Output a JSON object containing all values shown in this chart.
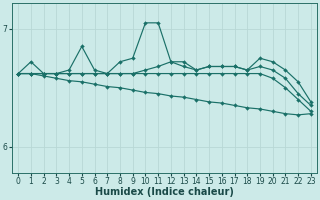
{
  "bg_color": "#cceae8",
  "grid_color": "#b8d8d5",
  "line_color": "#1a7068",
  "xlabel": "Humidex (Indice chaleur)",
  "xlabel_fontsize": 7,
  "yticks": [
    6,
    7
  ],
  "ylim": [
    5.78,
    7.22
  ],
  "xlim": [
    -0.5,
    23.5
  ],
  "xticks": [
    0,
    1,
    2,
    3,
    4,
    5,
    6,
    7,
    8,
    9,
    10,
    11,
    12,
    13,
    14,
    15,
    16,
    17,
    18,
    19,
    20,
    21,
    22,
    23
  ],
  "lines": [
    {
      "x": [
        0,
        1,
        2,
        3,
        4,
        5,
        6,
        7,
        8,
        9,
        10,
        11,
        12,
        13,
        14,
        15,
        16,
        17,
        18,
        19,
        20,
        21,
        22,
        23
      ],
      "y": [
        6.62,
        6.72,
        6.62,
        6.62,
        6.65,
        6.85,
        6.65,
        6.62,
        6.72,
        6.75,
        7.05,
        7.05,
        6.72,
        6.72,
        6.65,
        6.68,
        6.68,
        6.68,
        6.65,
        6.75,
        6.72,
        6.65,
        6.55,
        6.38
      ]
    },
    {
      "x": [
        0,
        1,
        2,
        3,
        4,
        5,
        6,
        7,
        8,
        9,
        10,
        11,
        12,
        13,
        14,
        15,
        16,
        17,
        18,
        19,
        20,
        21,
        22,
        23
      ],
      "y": [
        6.62,
        6.62,
        6.62,
        6.62,
        6.62,
        6.62,
        6.62,
        6.62,
        6.62,
        6.62,
        6.65,
        6.68,
        6.72,
        6.68,
        6.65,
        6.68,
        6.68,
        6.68,
        6.65,
        6.68,
        6.65,
        6.58,
        6.45,
        6.35
      ]
    },
    {
      "x": [
        0,
        1,
        2,
        3,
        4,
        5,
        6,
        7,
        8,
        9,
        10,
        11,
        12,
        13,
        14,
        15,
        16,
        17,
        18,
        19,
        20,
        21,
        22,
        23
      ],
      "y": [
        6.62,
        6.62,
        6.62,
        6.62,
        6.62,
        6.62,
        6.62,
        6.62,
        6.62,
        6.62,
        6.62,
        6.62,
        6.62,
        6.62,
        6.62,
        6.62,
        6.62,
        6.62,
        6.62,
        6.62,
        6.58,
        6.5,
        6.4,
        6.3
      ]
    },
    {
      "x": [
        0,
        1,
        2,
        3,
        4,
        5,
        6,
        7,
        8,
        9,
        10,
        11,
        12,
        13,
        14,
        15,
        16,
        17,
        18,
        19,
        20,
        21,
        22,
        23
      ],
      "y": [
        6.62,
        6.62,
        6.6,
        6.58,
        6.56,
        6.55,
        6.53,
        6.51,
        6.5,
        6.48,
        6.46,
        6.45,
        6.43,
        6.42,
        6.4,
        6.38,
        6.37,
        6.35,
        6.33,
        6.32,
        6.3,
        6.28,
        6.27,
        6.28
      ]
    }
  ]
}
